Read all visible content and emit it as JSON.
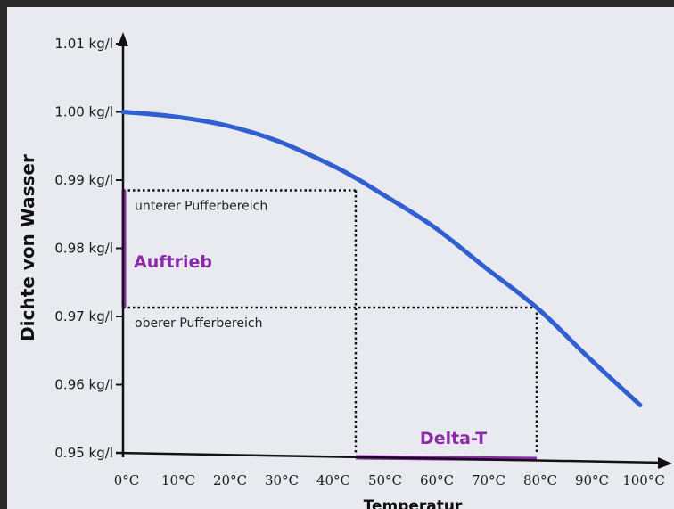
{
  "chart_data": {
    "type": "line",
    "ylabel": "Dichte von Wasser",
    "xlabel": "Temperatur",
    "x_ticks": [
      0,
      10,
      20,
      30,
      40,
      50,
      60,
      70,
      80,
      90,
      100
    ],
    "x_tick_labels": [
      "0°C",
      "10°C",
      "20°C",
      "30°C",
      "40°C",
      "50°C",
      "60°C",
      "70°C",
      "80°C",
      "90°C",
      "100°C"
    ],
    "y_ticks": [
      0.95,
      0.96,
      0.97,
      0.98,
      0.99,
      1.0,
      1.01
    ],
    "y_tick_labels": [
      "0.95 kg/l",
      "0.96 kg/l",
      "0.97 kg/l",
      "0.98 kg/l",
      "0.99 kg/l",
      "1.00 kg/l",
      "1.01 kg/l"
    ],
    "xlim": [
      0,
      100
    ],
    "ylim": [
      0.95,
      1.01
    ],
    "grid": false,
    "series": [
      {
        "color": "#2f5fd0",
        "x": [
          0,
          10,
          20,
          30,
          40,
          45,
          50,
          60,
          70,
          80,
          90,
          100
        ],
        "y": [
          1.0,
          0.9993,
          0.998,
          0.9957,
          0.9923,
          0.9903,
          0.988,
          0.9832,
          0.9772,
          0.9713,
          0.964,
          0.957
        ]
      }
    ],
    "reference_lines": [
      {
        "id": "unterer",
        "y": 0.9885,
        "x_end": 45,
        "label": "unterer Pufferbereich"
      },
      {
        "id": "oberer",
        "y": 0.9713,
        "x_end": 80,
        "label": "oberer Pufferbereich"
      }
    ],
    "annotations": {
      "auftrieb": {
        "label": "Auftrieb",
        "color": "#8a2aa8",
        "y_range": [
          0.9713,
          0.9885
        ]
      },
      "delta_t": {
        "label": "Delta-T",
        "color": "#8a2aa8",
        "x_range": [
          45,
          80
        ]
      }
    }
  }
}
